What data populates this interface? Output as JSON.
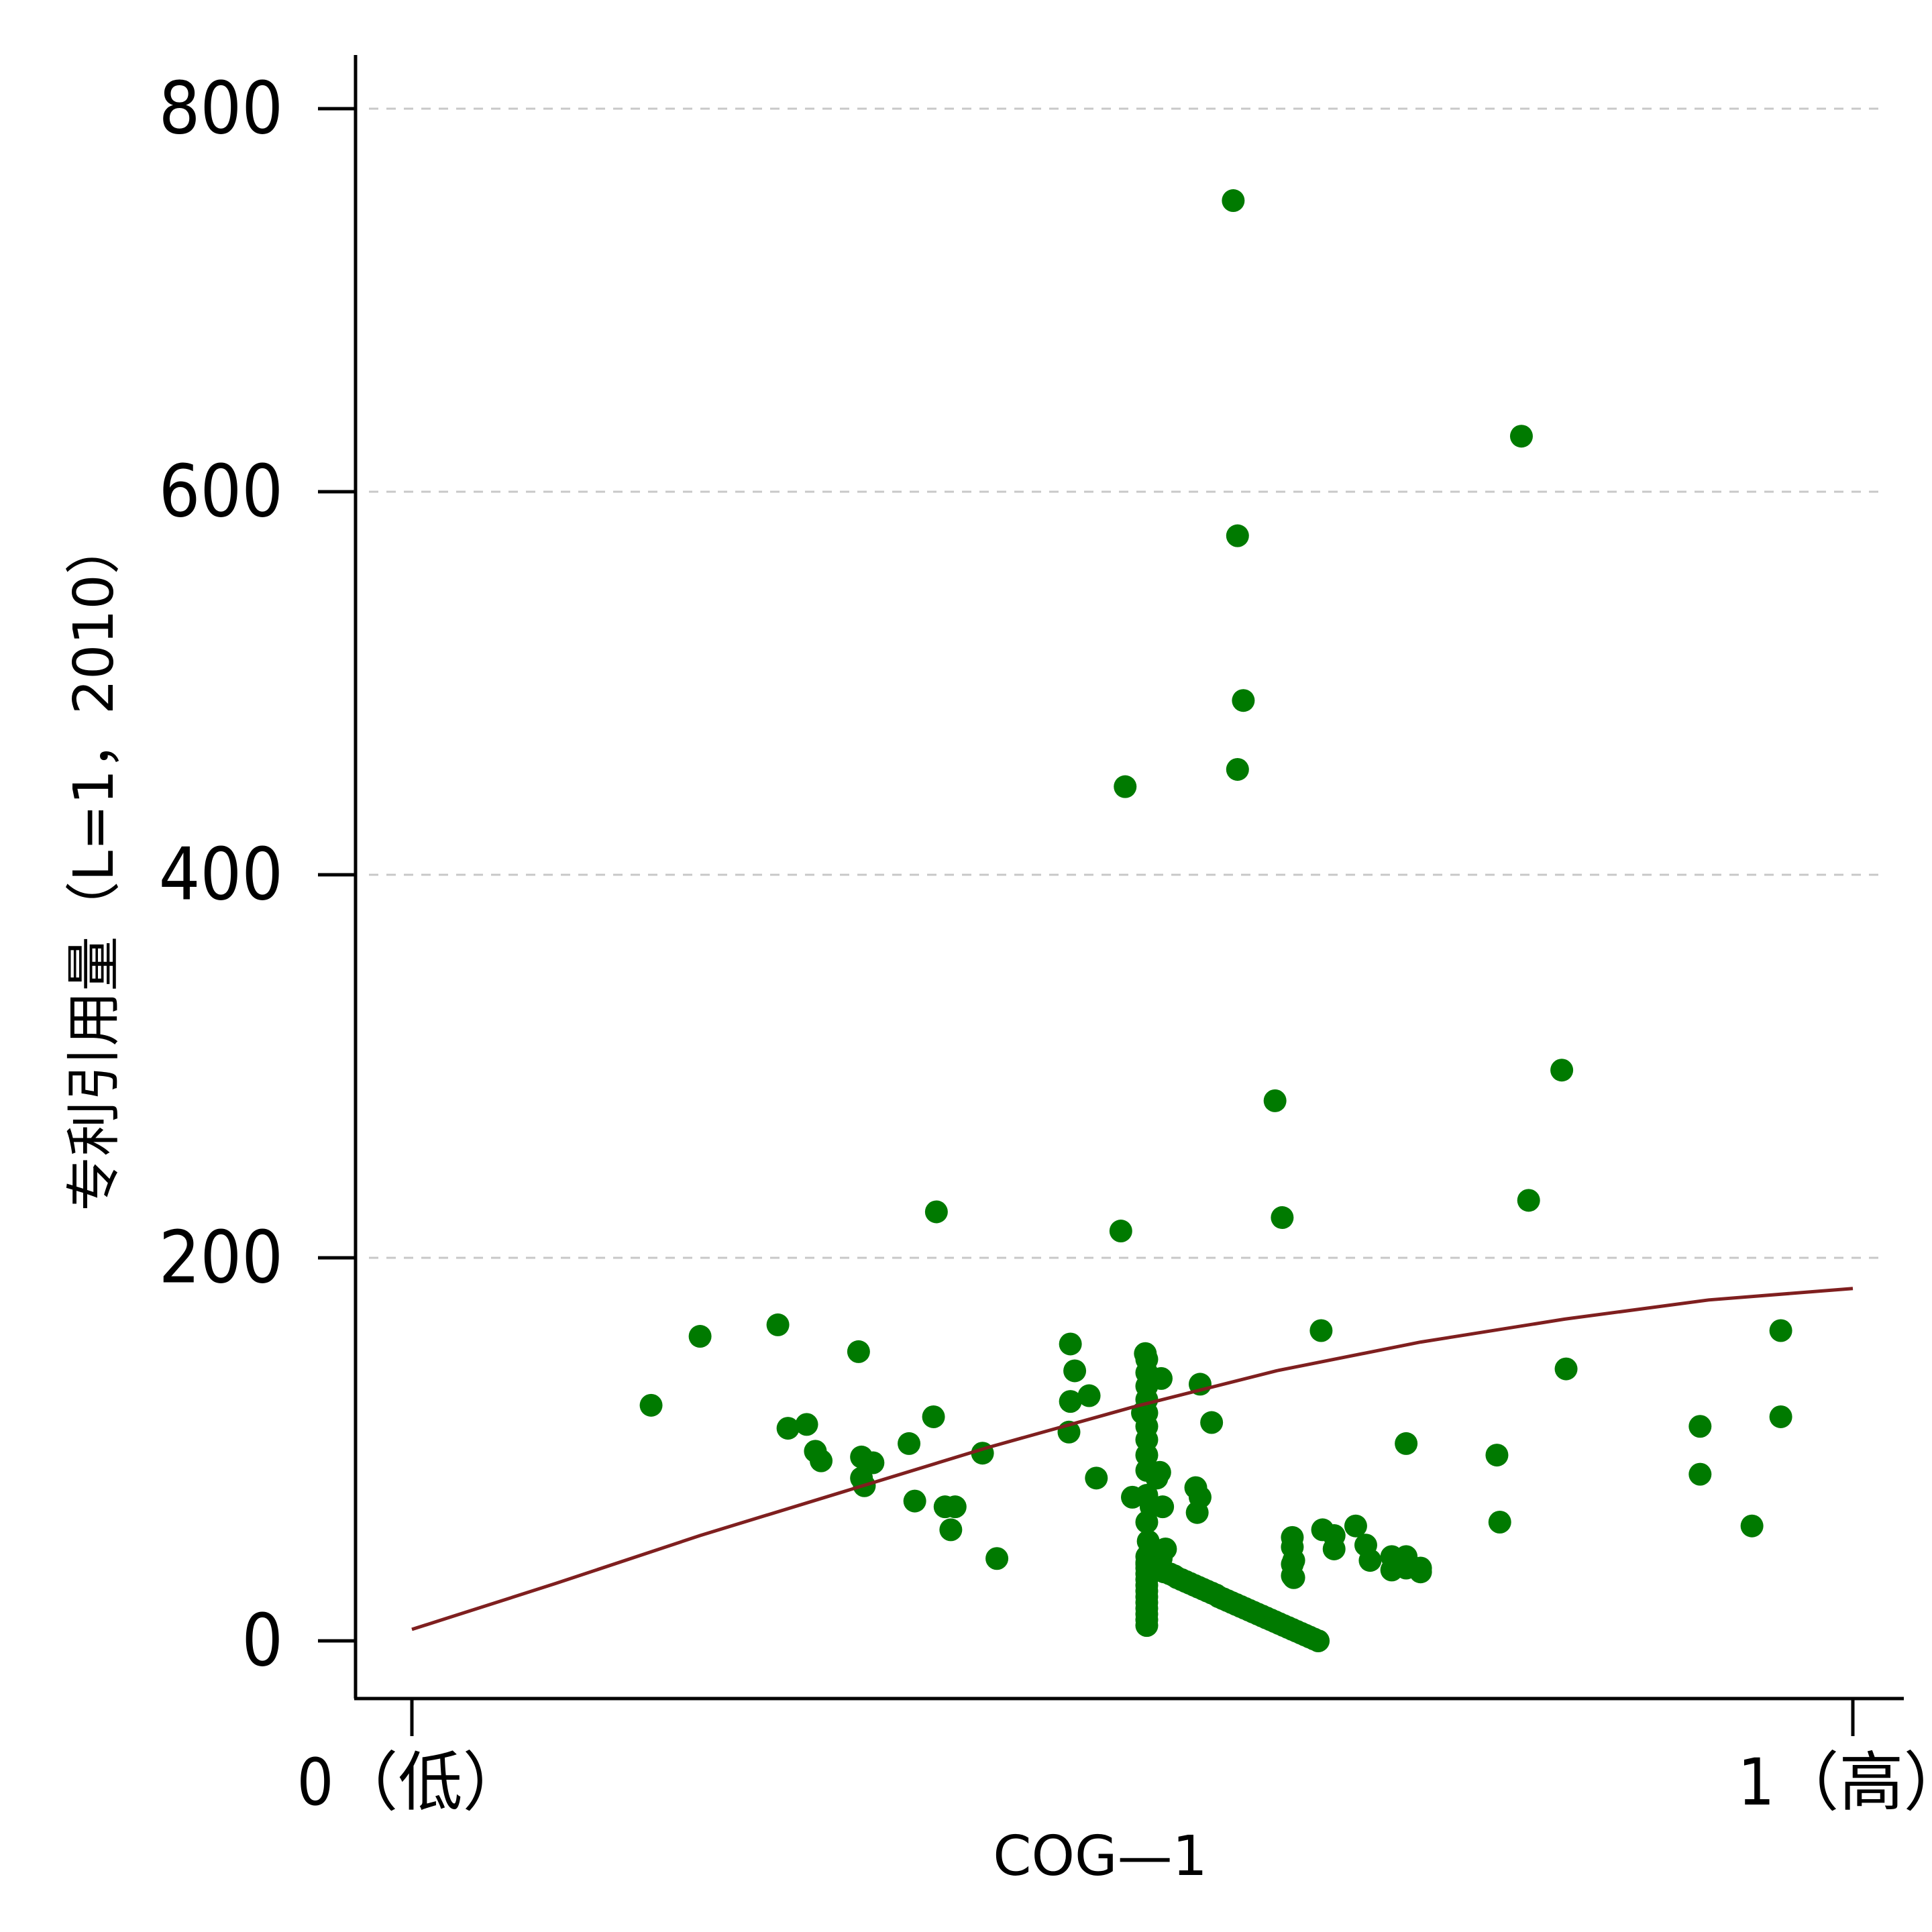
{
  "chart_data": {
    "type": "scatter",
    "title": "",
    "xlabel": "COG—1",
    "ylabel": "专利引用量（L=1，2010）",
    "xlim": [
      -0.037,
      1.034
    ],
    "ylim": [
      -25,
      825
    ],
    "x_ticks": [
      {
        "value": 0,
        "label": "0（低）"
      },
      {
        "value": 1,
        "label": "1（高）"
      }
    ],
    "y_ticks": [
      {
        "value": 0,
        "label": "0"
      },
      {
        "value": 200,
        "label": "200"
      },
      {
        "value": 400,
        "label": "400"
      },
      {
        "value": 600,
        "label": "600"
      },
      {
        "value": 800,
        "label": "800"
      }
    ],
    "grid": {
      "y": true,
      "x": false,
      "style": "dashed"
    },
    "colors": {
      "points": "#007a00",
      "fit_line": "#7f1f1f",
      "grid": "#c8c8c8",
      "axis": "#000000"
    },
    "series": [
      {
        "kind": "scatter",
        "points": [
          [
            0.57,
            752
          ],
          [
            0.77,
            629
          ],
          [
            0.573,
            577
          ],
          [
            0.577,
            491
          ],
          [
            0.573,
            455
          ],
          [
            0.495,
            446
          ],
          [
            0.798,
            298
          ],
          [
            0.599,
            282
          ],
          [
            0.364,
            224
          ],
          [
            0.604,
            221
          ],
          [
            0.775,
            230
          ],
          [
            0.492,
            214
          ],
          [
            0.254,
            165
          ],
          [
            0.31,
            151
          ],
          [
            0.2,
            159
          ],
          [
            0.166,
            123
          ],
          [
            0.457,
            155
          ],
          [
            0.46,
            141
          ],
          [
            0.509,
            150
          ],
          [
            0.52,
            137
          ],
          [
            0.547,
            134
          ],
          [
            0.801,
            142
          ],
          [
            0.95,
            162
          ],
          [
            0.95,
            117
          ],
          [
            0.631,
            162
          ],
          [
            0.362,
            117
          ],
          [
            0.457,
            125
          ],
          [
            0.47,
            128
          ],
          [
            0.507,
            119
          ],
          [
            0.555,
            114
          ],
          [
            0.456,
            109
          ],
          [
            0.345,
            103
          ],
          [
            0.396,
            98
          ],
          [
            0.517,
            85
          ],
          [
            0.475,
            85
          ],
          [
            0.69,
            103
          ],
          [
            0.753,
            97
          ],
          [
            0.894,
            112
          ],
          [
            0.894,
            87
          ],
          [
            0.261,
            111
          ],
          [
            0.274,
            113
          ],
          [
            0.28,
            99
          ],
          [
            0.32,
            93
          ],
          [
            0.284,
            94
          ],
          [
            0.312,
            96
          ],
          [
            0.314,
            81
          ],
          [
            0.312,
            85
          ],
          [
            0.544,
            80
          ],
          [
            0.547,
            75
          ],
          [
            0.377,
            70
          ],
          [
            0.37,
            70
          ],
          [
            0.349,
            73
          ],
          [
            0.374,
            58
          ],
          [
            0.406,
            43
          ],
          [
            0.51,
            76
          ],
          [
            0.5,
            75
          ],
          [
            0.519,
            88
          ],
          [
            0.51,
            89
          ],
          [
            0.51,
            97
          ],
          [
            0.51,
            105
          ],
          [
            0.51,
            112
          ],
          [
            0.51,
            119
          ],
          [
            0.51,
            126
          ],
          [
            0.51,
            133
          ],
          [
            0.51,
            140
          ],
          [
            0.51,
            147
          ],
          [
            0.513,
            70
          ],
          [
            0.521,
            70
          ],
          [
            0.51,
            62
          ],
          [
            0.511,
            52
          ],
          [
            0.511,
            45
          ],
          [
            0.52,
            43
          ],
          [
            0.545,
            67
          ],
          [
            0.755,
            62
          ],
          [
            0.93,
            60
          ],
          [
            0.51,
            44
          ],
          [
            0.51,
            41
          ],
          [
            0.51,
            38
          ],
          [
            0.51,
            35
          ],
          [
            0.51,
            32
          ],
          [
            0.51,
            29
          ],
          [
            0.51,
            26
          ],
          [
            0.51,
            23
          ],
          [
            0.51,
            20
          ],
          [
            0.51,
            17
          ],
          [
            0.51,
            14
          ],
          [
            0.51,
            11
          ],
          [
            0.51,
            8
          ],
          [
            0.519,
            44
          ],
          [
            0.52,
            47
          ],
          [
            0.523,
            48
          ],
          [
            0.51,
            40
          ],
          [
            0.511,
            39
          ],
          [
            0.514,
            38
          ],
          [
            0.518,
            37
          ],
          [
            0.522,
            36
          ],
          [
            0.526,
            35
          ],
          [
            0.529,
            34
          ],
          [
            0.531,
            33
          ],
          [
            0.534,
            32
          ],
          [
            0.537,
            31
          ],
          [
            0.54,
            30
          ],
          [
            0.543,
            29
          ],
          [
            0.546,
            28
          ],
          [
            0.549,
            27
          ],
          [
            0.552,
            26
          ],
          [
            0.555,
            25
          ],
          [
            0.558,
            24
          ],
          [
            0.56,
            23
          ],
          [
            0.563,
            22
          ],
          [
            0.566,
            21
          ],
          [
            0.569,
            20
          ],
          [
            0.572,
            19
          ],
          [
            0.575,
            18
          ],
          [
            0.578,
            17
          ],
          [
            0.581,
            16
          ],
          [
            0.584,
            15
          ],
          [
            0.587,
            14
          ],
          [
            0.59,
            13
          ],
          [
            0.593,
            12
          ],
          [
            0.596,
            11
          ],
          [
            0.599,
            10
          ],
          [
            0.602,
            9
          ],
          [
            0.605,
            8
          ],
          [
            0.608,
            7
          ],
          [
            0.611,
            6
          ],
          [
            0.614,
            5
          ],
          [
            0.617,
            4
          ],
          [
            0.62,
            3
          ],
          [
            0.623,
            2
          ],
          [
            0.626,
            1
          ],
          [
            0.629,
            0
          ],
          [
            0.611,
            40
          ],
          [
            0.611,
            34
          ],
          [
            0.612,
            33
          ],
          [
            0.611,
            49
          ],
          [
            0.611,
            54
          ],
          [
            0.612,
            42
          ],
          [
            0.632,
            58
          ],
          [
            0.64,
            55
          ],
          [
            0.64,
            48
          ],
          [
            0.655,
            60
          ],
          [
            0.662,
            50
          ],
          [
            0.665,
            42
          ],
          [
            0.68,
            44
          ],
          [
            0.68,
            37
          ],
          [
            0.69,
            44
          ],
          [
            0.69,
            38
          ],
          [
            0.7,
            38
          ],
          [
            0.7,
            36
          ]
        ]
      },
      {
        "kind": "line",
        "points": [
          [
            0,
            6
          ],
          [
            0.1,
            30
          ],
          [
            0.2,
            55
          ],
          [
            0.3,
            78
          ],
          [
            0.4,
            101
          ],
          [
            0.5,
            122
          ],
          [
            0.6,
            141
          ],
          [
            0.7,
            156
          ],
          [
            0.8,
            168
          ],
          [
            0.9,
            178
          ],
          [
            1.0,
            184
          ]
        ]
      }
    ]
  }
}
